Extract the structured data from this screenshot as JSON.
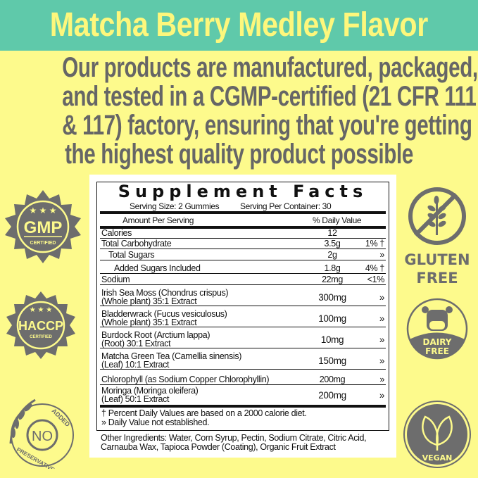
{
  "banner": {
    "title": "Matcha Berry Medley Flavor"
  },
  "headline": [
    "Our products are manufactured, packaged,",
    "and tested in a CGMP-certified (21 CFR 111",
    "& 117) factory, ensuring that you're getting",
    "the highest quality product possible"
  ],
  "facts": {
    "title": "Supplement Facts",
    "serving_size": "Serving Size: 2 Gummies",
    "servings_per_container": "Serving Per Container: 30",
    "amount_header": "Amount Per Serving",
    "dv_header": "% Daily Value",
    "rows": [
      {
        "name": "Calories",
        "amount": "12",
        "dv": ""
      },
      {
        "name": "Total Carbohydrate",
        "amount": "3.5g",
        "dv": "1% †"
      },
      {
        "name": "Total Sugars",
        "amount": "2g",
        "dv": "»"
      },
      {
        "name": "Added Sugars Included",
        "amount": "1.8g",
        "dv": "4% †"
      },
      {
        "name": "Sodium",
        "amount": "22mg",
        "dv": "<1%"
      },
      {
        "name": "Irish Sea Moss (Chondrus crispus)",
        "name2": "(Whole plant) 35:1 Extract",
        "amount": "300mg",
        "dv": "»"
      },
      {
        "name": "Bladderwrack (Fucus vesiculosus)",
        "name2": "(Whole plant) 35:1 Extract",
        "amount": "100mg",
        "dv": "»"
      },
      {
        "name": "Burdock Root (Arctium lappa)",
        "name2": "(Root)  30:1 Extract",
        "amount": "10mg",
        "dv": "»"
      },
      {
        "name": "Matcha Green Tea (Camellia sinensis)",
        "name2": "(Leaf)  10:1 Extract",
        "amount": "150mg",
        "dv": "»"
      },
      {
        "name": "Chlorophyll (as Sodium Copper Chlorophyllin)",
        "amount": "200mg",
        "dv": "»"
      },
      {
        "name": "Moringa (Moringa oleifera)",
        "name2": "(Leaf) 50:1 Extract",
        "amount": "200mg",
        "dv": "»"
      }
    ],
    "footnote1": "† Percent Daily Values are based on a 2000 calorie diet.",
    "footnote2": "» Daily Value not established.",
    "other_ingredients1": "Other Ingredients: Water, Corn Syrup, Pectin, Sodium Citrate, Citric Acid,",
    "other_ingredients2": "Carnauba Wax, Tapioca Powder (Coating), Organic Fruit Extract"
  },
  "badges": {
    "gmp": {
      "text": "GMP",
      "sub": "CERTIFIED"
    },
    "haccp": {
      "text": "HACCP",
      "sub": "CERTIFIED"
    },
    "preservatives": {
      "top": "ADDED",
      "center": "NO",
      "bottom": "PRESERVATIVES"
    },
    "gluten": {
      "line1": "GLUTEN",
      "line2": "FREE"
    },
    "dairy": {
      "line1": "DAIRY",
      "line2": "FREE"
    },
    "vegan": {
      "text": "VEGAN"
    }
  },
  "colors": {
    "banner": "#5fc9aa",
    "title": "#fdf77c",
    "background": "#fdfa8c",
    "gray": "#666666"
  }
}
